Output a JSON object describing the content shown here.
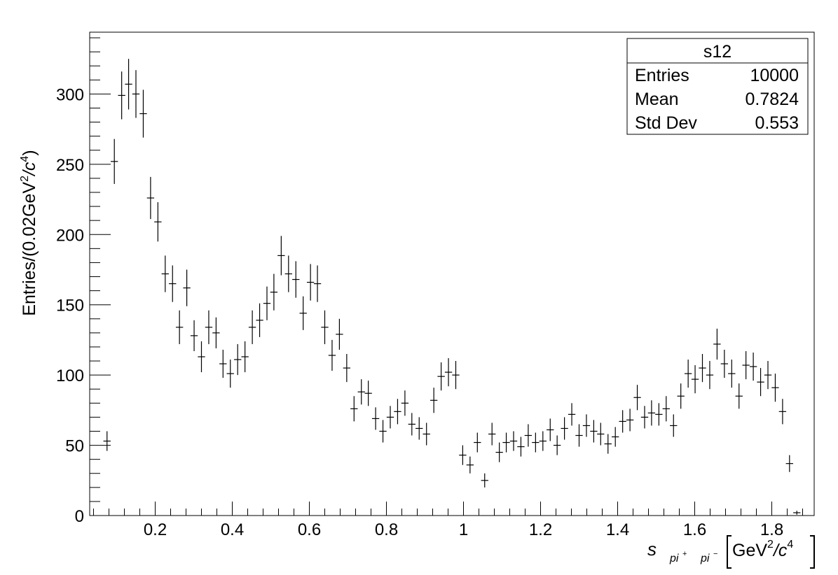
{
  "chart_data": {
    "type": "scatter",
    "style": "histogram-error-bars",
    "title": "",
    "xlabel": {
      "main": "s",
      "sub1": "pi",
      "sup1": "+",
      "sub2": "pi",
      "sup2": "−",
      "unit_prefix": "GeV",
      "unit_exp": "2",
      "unit_suffix": "/c",
      "unit_exp2": "4"
    },
    "ylabel": {
      "prefix": "Entries/(0.02GeV",
      "exp": "2",
      "mid": "/c",
      "exp2": "4",
      "suffix": ")"
    },
    "xlim": [
      0.03,
      1.91
    ],
    "ylim": [
      0,
      344
    ],
    "bin_width": 0.0188,
    "x_ticks": [
      0.2,
      0.4,
      0.6,
      0.8,
      1.0,
      1.2,
      1.4,
      1.6,
      1.8
    ],
    "x_tick_labels": [
      "0.2",
      "0.4",
      "0.6",
      "0.8",
      "1",
      "1.2",
      "1.4",
      "1.6",
      "1.8"
    ],
    "y_ticks": [
      0,
      50,
      100,
      150,
      200,
      250,
      300
    ],
    "y_tick_labels": [
      "0",
      "50",
      "100",
      "150",
      "200",
      "250",
      "300"
    ],
    "grid": false,
    "legend": "none",
    "x": [
      0.075,
      0.094,
      0.113,
      0.131,
      0.15,
      0.169,
      0.188,
      0.207,
      0.226,
      0.245,
      0.263,
      0.282,
      0.301,
      0.32,
      0.339,
      0.358,
      0.376,
      0.395,
      0.414,
      0.433,
      0.452,
      0.471,
      0.49,
      0.508,
      0.527,
      0.546,
      0.565,
      0.584,
      0.603,
      0.621,
      0.64,
      0.659,
      0.678,
      0.697,
      0.716,
      0.735,
      0.753,
      0.772,
      0.791,
      0.81,
      0.829,
      0.848,
      0.866,
      0.885,
      0.904,
      0.923,
      0.942,
      0.961,
      0.98,
      0.998,
      1.017,
      1.036,
      1.055,
      1.074,
      1.093,
      1.111,
      1.13,
      1.149,
      1.168,
      1.187,
      1.206,
      1.225,
      1.243,
      1.262,
      1.281,
      1.3,
      1.319,
      1.338,
      1.356,
      1.375,
      1.394,
      1.413,
      1.432,
      1.451,
      1.47,
      1.488,
      1.507,
      1.526,
      1.545,
      1.564,
      1.583,
      1.601,
      1.62,
      1.639,
      1.658,
      1.677,
      1.696,
      1.715,
      1.733,
      1.752,
      1.771,
      1.79,
      1.809,
      1.828,
      1.846,
      1.865
    ],
    "y": [
      53,
      252,
      299,
      307,
      300,
      286,
      226,
      209,
      172,
      165,
      134,
      162,
      128,
      113,
      134,
      130,
      108,
      101,
      111,
      113,
      134,
      139,
      151,
      159,
      185,
      172,
      168,
      144,
      166,
      165,
      134,
      114,
      129,
      105,
      76,
      88,
      87,
      69,
      60,
      70,
      74,
      80,
      65,
      62,
      58,
      82,
      99,
      102,
      100,
      43,
      36,
      52,
      25,
      58,
      45,
      52,
      53,
      49,
      57,
      52,
      53,
      61,
      50,
      62,
      72,
      57,
      64,
      60,
      58,
      51,
      56,
      67,
      68,
      84,
      70,
      73,
      72,
      76,
      64,
      85,
      101,
      97,
      105,
      100,
      122,
      108,
      101,
      85,
      107,
      106,
      95,
      100,
      91,
      74,
      37,
      2
    ],
    "yerr": [
      7,
      16,
      17,
      18,
      17,
      17,
      15,
      14,
      13,
      13,
      12,
      13,
      11,
      11,
      12,
      11,
      10,
      10,
      11,
      11,
      12,
      12,
      12,
      13,
      14,
      13,
      13,
      12,
      13,
      13,
      12,
      11,
      11,
      10,
      9,
      9,
      9,
      8,
      8,
      8,
      9,
      9,
      8,
      8,
      8,
      9,
      10,
      10,
      10,
      7,
      6,
      7,
      5,
      8,
      7,
      7,
      7,
      7,
      8,
      7,
      7,
      8,
      7,
      8,
      8,
      8,
      8,
      8,
      8,
      7,
      7,
      8,
      8,
      9,
      8,
      9,
      8,
      9,
      8,
      9,
      10,
      10,
      10,
      10,
      11,
      10,
      10,
      9,
      10,
      10,
      10,
      10,
      10,
      9,
      6,
      1.4
    ]
  },
  "stats_box": {
    "title": "s12",
    "rows": [
      {
        "label": "Entries",
        "value": "10000"
      },
      {
        "label": "Mean",
        "value": "0.7824"
      },
      {
        "label": "Std Dev",
        "value": "0.553"
      }
    ]
  }
}
